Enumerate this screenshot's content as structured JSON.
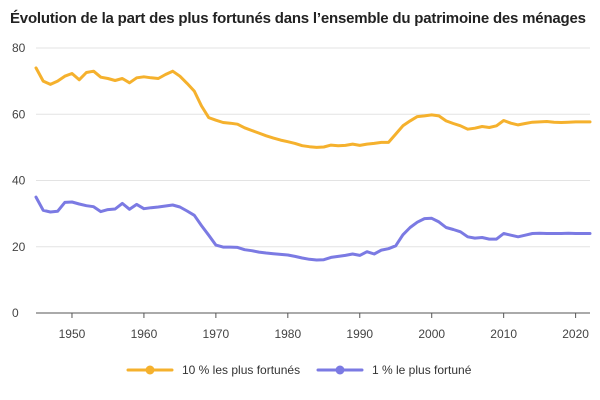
{
  "chart_data": {
    "type": "line",
    "title": "Évolution de la part des plus fortunés dans l’ensemble du patrimoine des ménages",
    "xlabel": "",
    "ylabel": "",
    "xlim": [
      1945,
      2022
    ],
    "ylim": [
      0,
      80
    ],
    "x_ticks": [
      "1950",
      "1960",
      "1970",
      "1980",
      "1990",
      "2000",
      "2010",
      "2020"
    ],
    "y_ticks": [
      "0",
      "20",
      "40",
      "60",
      "80"
    ],
    "grid": "horizontal",
    "legend_position": "bottom",
    "x": [
      1945,
      1946,
      1947,
      1948,
      1949,
      1950,
      1951,
      1952,
      1953,
      1954,
      1955,
      1956,
      1957,
      1958,
      1959,
      1960,
      1961,
      1962,
      1963,
      1964,
      1965,
      1966,
      1967,
      1968,
      1969,
      1970,
      1971,
      1972,
      1973,
      1974,
      1975,
      1976,
      1977,
      1978,
      1979,
      1980,
      1981,
      1982,
      1983,
      1984,
      1985,
      1986,
      1987,
      1988,
      1989,
      1990,
      1991,
      1992,
      1993,
      1994,
      1995,
      1996,
      1997,
      1998,
      1999,
      2000,
      2001,
      2002,
      2003,
      2004,
      2005,
      2006,
      2007,
      2008,
      2009,
      2010,
      2011,
      2012,
      2013,
      2014,
      2015,
      2016,
      2017,
      2018,
      2019,
      2020,
      2021,
      2022
    ],
    "series": [
      {
        "name": "10 % les plus fortunés",
        "color": "#f5b12d",
        "values": [
          74,
          70,
          69,
          70,
          71.5,
          72.3,
          70.4,
          72.6,
          73,
          71.2,
          70.8,
          70.2,
          70.8,
          69.5,
          71,
          71.3,
          71,
          70.8,
          72,
          73,
          71.5,
          69.3,
          67,
          62.5,
          59,
          58.2,
          57.5,
          57.3,
          57,
          55.9,
          55.1,
          54.3,
          53.5,
          52.8,
          52.2,
          51.7,
          51.2,
          50.5,
          50.2,
          50,
          50.1,
          50.7,
          50.5,
          50.6,
          51,
          50.6,
          51,
          51.2,
          51.5,
          51.5,
          54,
          56.5,
          58,
          59.3,
          59.5,
          59.8,
          59.5,
          58,
          57.2,
          56.5,
          55.5,
          55.8,
          56.3,
          56,
          56.5,
          58.1,
          57.3,
          56.8,
          57.2,
          57.6,
          57.7,
          57.8,
          57.6,
          57.5,
          57.6,
          57.7,
          57.7,
          57.7
        ]
      },
      {
        "name": "1 % le plus fortuné",
        "color": "#7b7ae3",
        "values": [
          35,
          31,
          30.5,
          30.7,
          33.4,
          33.5,
          32.9,
          32.4,
          32.1,
          30.6,
          31.2,
          31.4,
          33.1,
          31.3,
          32.8,
          31.5,
          31.8,
          32,
          32.3,
          32.6,
          32,
          30.8,
          29.5,
          26.4,
          23.5,
          20.5,
          19.9,
          19.9,
          19.8,
          19.1,
          18.8,
          18.4,
          18.1,
          17.9,
          17.7,
          17.5,
          17.1,
          16.6,
          16.2,
          16,
          16.1,
          16.8,
          17.1,
          17.4,
          17.8,
          17.4,
          18.5,
          17.8,
          19,
          19.4,
          20.3,
          23.6,
          25.8,
          27.4,
          28.5,
          28.6,
          27.5,
          25.8,
          25.2,
          24.5,
          23,
          22.6,
          22.8,
          22.3,
          22.3,
          24,
          23.5,
          23,
          23.5,
          24,
          24.1,
          24,
          24,
          24,
          24.1,
          24,
          24,
          24
        ]
      }
    ]
  }
}
